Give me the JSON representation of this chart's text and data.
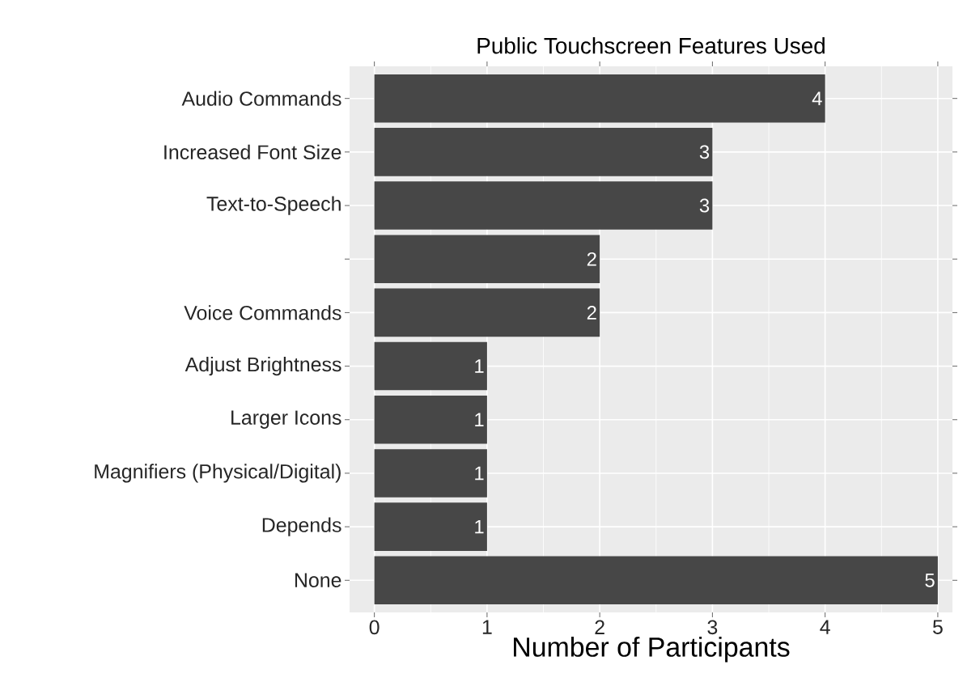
{
  "chart_data": {
    "type": "bar",
    "orientation": "horizontal",
    "title": "Public Touchscreen Features Used",
    "xlabel": "Number of Participants",
    "categories": [
      "Audio Commands",
      "Increased Font Size",
      "Text-to-Speech",
      null,
      "Voice Commands",
      "Adjust Brightness",
      "Larger Icons",
      "Magnifiers (Physical/Digital)",
      "Depends",
      "None"
    ],
    "values": [
      4,
      3,
      3,
      2,
      2,
      1,
      1,
      1,
      1,
      5
    ],
    "color": "#474747",
    "xlim": [
      -0.22,
      5.13
    ],
    "xticks": [
      0,
      1,
      2,
      3,
      4,
      5
    ],
    "grid": true,
    "data_labels": true
  }
}
